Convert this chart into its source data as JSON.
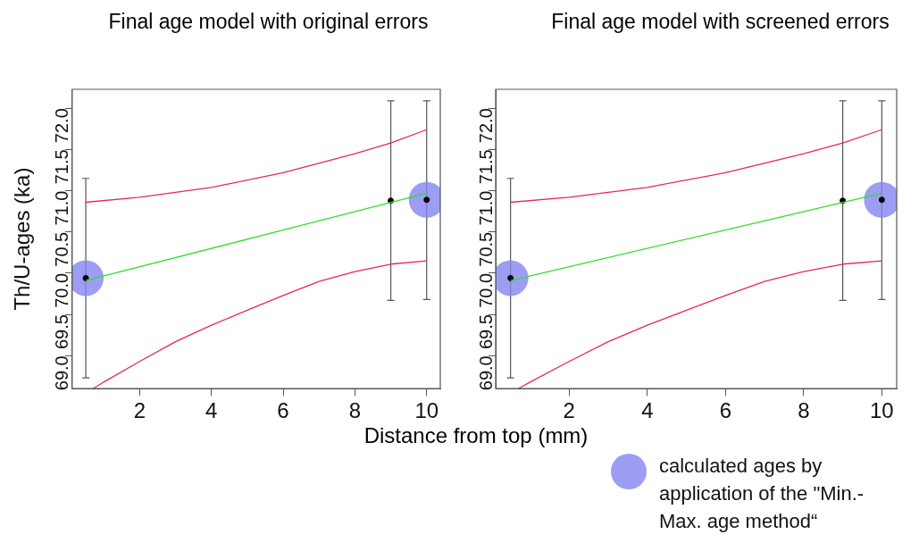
{
  "chart_data": [
    {
      "type": "line",
      "title": "Final age model with original errors",
      "xlabel": "Distance from top (mm)",
      "ylabel": "Th/U-ages (ka)",
      "xlim": [
        0.12,
        10.38
      ],
      "ylim": [
        68.6,
        72.23
      ],
      "xticks": [
        2,
        4,
        6,
        8,
        10
      ],
      "yticks": [
        {
          "value": 69,
          "label": "69.0"
        },
        {
          "value": 69.5,
          "label": "69.5"
        },
        {
          "value": 70,
          "label": "70.0"
        },
        {
          "value": 70.5,
          "label": "70.5"
        },
        {
          "value": 71,
          "label": "71.0"
        },
        {
          "value": 71.5,
          "label": "71.5"
        },
        {
          "value": 72,
          "label": "72.0"
        }
      ],
      "legend": false,
      "series": [
        {
          "type": "line",
          "color": "#e8294f",
          "x": [
            0.5,
            2,
            4,
            6,
            8,
            9,
            10
          ],
          "values": [
            70.86,
            70.92,
            71.04,
            71.22,
            71.45,
            71.58,
            71.74
          ]
        },
        {
          "type": "line",
          "color": "#e8294f",
          "x": [
            0.7,
            1,
            2,
            3,
            4,
            5,
            6,
            7,
            8,
            9,
            10
          ],
          "values": [
            68.6,
            68.68,
            68.93,
            69.17,
            69.37,
            69.55,
            69.73,
            69.9,
            70.02,
            70.11,
            70.15
          ]
        },
        {
          "type": "line",
          "color": "#33dd33",
          "x": [
            0.5,
            10
          ],
          "values": [
            69.91,
            70.97
          ]
        },
        {
          "type": "scatter",
          "color": "#000000",
          "x": [
            0.5,
            9,
            10
          ],
          "values": [
            69.94,
            70.88,
            70.89
          ],
          "errors": [
            [
              68.73,
              71.15
            ],
            [
              69.67,
              72.09
            ],
            [
              69.68,
              72.09
            ]
          ]
        },
        {
          "type": "bubble",
          "color": "#8585f0",
          "x": [
            0.5,
            10
          ],
          "values": [
            69.94,
            70.89
          ],
          "sizes": [
            1,
            1
          ]
        }
      ]
    },
    {
      "type": "line",
      "title": "Final age model with screened errors",
      "xlim": [
        0.12,
        10.38
      ],
      "ylim": [
        68.6,
        72.23
      ],
      "xticks": [
        2,
        4,
        6,
        8,
        10
      ],
      "yticks": [
        {
          "value": 69,
          "label": "69.0"
        },
        {
          "value": 69.5,
          "label": "69.5"
        },
        {
          "value": 70,
          "label": "70.0"
        },
        {
          "value": 70.5,
          "label": "70.5"
        },
        {
          "value": 71,
          "label": "71.0"
        },
        {
          "value": 71.5,
          "label": "71.5"
        },
        {
          "value": 72,
          "label": "72.0"
        }
      ],
      "legend": "bottom right",
      "series": [
        {
          "type": "line",
          "color": "#e8294f",
          "x": [
            0.5,
            2,
            4,
            6,
            8,
            9,
            10
          ],
          "values": [
            70.86,
            70.92,
            71.04,
            71.22,
            71.45,
            71.58,
            71.74
          ]
        },
        {
          "type": "line",
          "color": "#e8294f",
          "x": [
            0.7,
            1,
            2,
            3,
            4,
            5,
            6,
            7,
            8,
            9,
            10
          ],
          "values": [
            68.6,
            68.68,
            68.93,
            69.17,
            69.37,
            69.55,
            69.73,
            69.9,
            70.02,
            70.11,
            70.15
          ]
        },
        {
          "type": "line",
          "color": "#33dd33",
          "x": [
            0.5,
            10
          ],
          "values": [
            69.91,
            70.97
          ]
        },
        {
          "type": "scatter",
          "color": "#000000",
          "x": [
            0.5,
            9,
            10
          ],
          "values": [
            69.94,
            70.88,
            70.89
          ],
          "errors": [
            [
              68.73,
              71.15
            ],
            [
              69.67,
              72.09
            ],
            [
              69.68,
              72.09
            ]
          ]
        },
        {
          "type": "bubble",
          "name": "calculated ages by application of the \"Min.-Max. age method“",
          "color": "#8585f0",
          "x": [
            0.5,
            10
          ],
          "values": [
            69.94,
            70.89
          ],
          "sizes": [
            1,
            1
          ]
        }
      ]
    }
  ]
}
